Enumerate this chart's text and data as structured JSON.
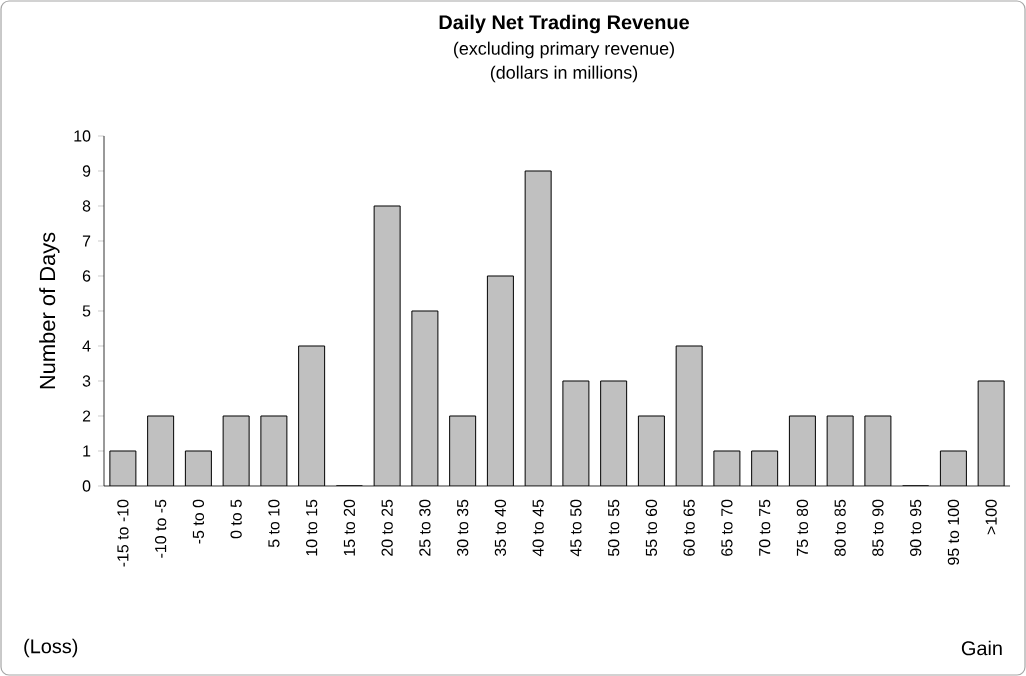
{
  "chart_data": {
    "type": "bar",
    "title": "Daily Net Trading Revenue",
    "subtitle": "(excluding primary revenue)",
    "ylabel": "Number of Days",
    "categories": [
      "-15 to -10",
      "-10 to -5",
      "-5 to 0",
      "0 to 5",
      "5 to 10",
      "10 to 15",
      "15 to 20",
      "20 to 25",
      "25 to 30",
      "30 to 35",
      "35 to 40",
      "40 to 45",
      "45 to 50",
      "50 to 55",
      "55 to 60",
      "60 to 65",
      "65 to 70",
      "70 to 75",
      "75 to 80",
      "80 to 85",
      "85 to 90",
      "90 to 95",
      "95 to 100",
      ">100"
    ],
    "values": [
      1,
      2,
      1,
      2,
      2,
      4,
      0,
      8,
      5,
      2,
      6,
      9,
      3,
      3,
      2,
      4,
      1,
      1,
      2,
      2,
      2,
      0,
      1,
      3
    ],
    "color": "#c0c0c0",
    "ylim": [
      0,
      10
    ],
    "yticks": [
      0,
      1,
      2,
      3,
      4,
      5,
      6,
      7,
      8,
      9,
      10
    ],
    "annotations": [
      "(dollars in millions)",
      "(Loss)",
      "Gain"
    ]
  }
}
